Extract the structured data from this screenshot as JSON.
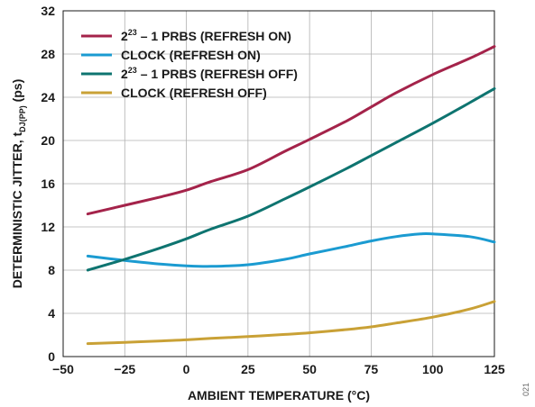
{
  "chart_data": {
    "type": "line",
    "xlabel": "AMBIENT TEMPERATURE (°C)",
    "ylabel": {
      "main": "DETERMINISTIC JITTER, t",
      "subscript": "DJ(PP)",
      "unit": " (ps)"
    },
    "xlim": [
      -50,
      125
    ],
    "ylim": [
      0,
      32
    ],
    "x_ticks": [
      "−50",
      "−25",
      "0",
      "25",
      "50",
      "75",
      "100",
      "125"
    ],
    "x_tick_values": [
      -50,
      -25,
      0,
      25,
      50,
      75,
      100,
      125
    ],
    "y_ticks": [
      "0",
      "4",
      "8",
      "12",
      "16",
      "20",
      "24",
      "28",
      "32"
    ],
    "y_tick_values": [
      0,
      4,
      8,
      12,
      16,
      20,
      24,
      28,
      32
    ],
    "grid": true,
    "legend_position": "top-left",
    "series": [
      {
        "legend": {
          "prefix": "2",
          "superscript": "23",
          "suffix": " – 1 PRBS (REFRESH ON)"
        },
        "color": "#A4234A",
        "x": [
          -40,
          -25,
          -10,
          0,
          10,
          25,
          40,
          50,
          65,
          75,
          85,
          100,
          115,
          125
        ],
        "y": [
          13.2,
          14.0,
          14.8,
          15.4,
          16.2,
          17.3,
          19.0,
          20.1,
          21.8,
          23.1,
          24.4,
          26.1,
          27.6,
          28.7
        ]
      },
      {
        "legend": {
          "prefix": "CLOCK (REFRESH ON)",
          "superscript": "",
          "suffix": ""
        },
        "color": "#1B9BD1",
        "x": [
          -40,
          -25,
          -10,
          0,
          10,
          25,
          40,
          50,
          65,
          75,
          85,
          95,
          100,
          115,
          125
        ],
        "y": [
          9.3,
          8.9,
          8.55,
          8.4,
          8.35,
          8.5,
          9.0,
          9.5,
          10.2,
          10.7,
          11.1,
          11.35,
          11.35,
          11.1,
          10.6
        ]
      },
      {
        "legend": {
          "prefix": "2",
          "superscript": "23",
          "suffix": " – 1 PRBS (REFRESH OFF)"
        },
        "color": "#0E7470",
        "x": [
          -40,
          -25,
          -10,
          0,
          10,
          25,
          40,
          50,
          65,
          75,
          85,
          100,
          115,
          125
        ],
        "y": [
          8.0,
          9.0,
          10.1,
          10.9,
          11.8,
          13.0,
          14.6,
          15.7,
          17.4,
          18.6,
          19.8,
          21.6,
          23.5,
          24.8
        ]
      },
      {
        "legend": {
          "prefix": "CLOCK (REFRESH OFF)",
          "superscript": "",
          "suffix": ""
        },
        "color": "#C9A136",
        "x": [
          -40,
          -25,
          -10,
          0,
          10,
          25,
          40,
          50,
          65,
          75,
          85,
          100,
          115,
          125
        ],
        "y": [
          1.2,
          1.32,
          1.45,
          1.55,
          1.68,
          1.85,
          2.05,
          2.2,
          2.5,
          2.75,
          3.1,
          3.65,
          4.4,
          5.1
        ]
      }
    ]
  },
  "figure_id": "021"
}
